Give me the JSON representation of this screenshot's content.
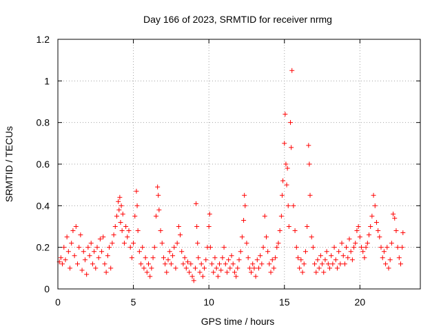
{
  "chart_data": {
    "type": "scatter",
    "title": "Day 166 of 2023, SRMTID for receiver nrmg",
    "xlabel": "GPS time / hours",
    "ylabel": "SRMTID / TECUs",
    "xlim": [
      0,
      24
    ],
    "ylim": [
      0,
      1.2
    ],
    "xticks": [
      0,
      5,
      10,
      15,
      20
    ],
    "xtick_labels": [
      "0",
      "5",
      "10",
      "15",
      "20"
    ],
    "yticks": [
      0,
      0.2,
      0.4,
      0.6,
      0.8,
      1,
      1.2
    ],
    "ytick_labels": [
      "0",
      "0.2",
      "0.4",
      "0.6",
      "0.8",
      "1",
      "1.2"
    ],
    "grid": true,
    "marker": "+",
    "color": "#ff0000",
    "series": [
      {
        "name": "SRMTID",
        "points": [
          [
            0.1,
            0.13
          ],
          [
            0.2,
            0.15
          ],
          [
            0.3,
            0.12
          ],
          [
            0.4,
            0.2
          ],
          [
            0.5,
            0.14
          ],
          [
            0.6,
            0.25
          ],
          [
            0.7,
            0.18
          ],
          [
            0.8,
            0.1
          ],
          [
            0.9,
            0.22
          ],
          [
            1.0,
            0.28
          ],
          [
            1.1,
            0.16
          ],
          [
            1.2,
            0.3
          ],
          [
            1.3,
            0.12
          ],
          [
            1.4,
            0.2
          ],
          [
            1.5,
            0.26
          ],
          [
            1.6,
            0.09
          ],
          [
            1.7,
            0.18
          ],
          [
            1.8,
            0.14
          ],
          [
            1.9,
            0.07
          ],
          [
            2.0,
            0.2
          ],
          [
            2.1,
            0.16
          ],
          [
            2.2,
            0.22
          ],
          [
            2.3,
            0.12
          ],
          [
            2.4,
            0.18
          ],
          [
            2.5,
            0.1
          ],
          [
            2.6,
            0.2
          ],
          [
            2.7,
            0.15
          ],
          [
            2.8,
            0.24
          ],
          [
            2.9,
            0.18
          ],
          [
            3.0,
            0.25
          ],
          [
            3.1,
            0.12
          ],
          [
            3.2,
            0.08
          ],
          [
            3.3,
            0.16
          ],
          [
            3.4,
            0.2
          ],
          [
            3.5,
            0.1
          ],
          [
            3.6,
            0.22
          ],
          [
            3.7,
            0.26
          ],
          [
            3.8,
            0.3
          ],
          [
            3.9,
            0.35
          ],
          [
            4.0,
            0.42
          ],
          [
            4.05,
            0.38
          ],
          [
            4.1,
            0.44
          ],
          [
            4.15,
            0.32
          ],
          [
            4.2,
            0.4
          ],
          [
            4.25,
            0.28
          ],
          [
            4.3,
            0.36
          ],
          [
            4.4,
            0.22
          ],
          [
            4.5,
            0.3
          ],
          [
            4.6,
            0.25
          ],
          [
            4.7,
            0.28
          ],
          [
            4.8,
            0.2
          ],
          [
            4.9,
            0.15
          ],
          [
            5.0,
            0.22
          ],
          [
            5.1,
            0.35
          ],
          [
            5.2,
            0.47
          ],
          [
            5.25,
            0.4
          ],
          [
            5.3,
            0.28
          ],
          [
            5.4,
            0.18
          ],
          [
            5.5,
            0.12
          ],
          [
            5.6,
            0.2
          ],
          [
            5.7,
            0.1
          ],
          [
            5.8,
            0.15
          ],
          [
            5.9,
            0.08
          ],
          [
            6.0,
            0.12
          ],
          [
            6.1,
            0.06
          ],
          [
            6.2,
            0.1
          ],
          [
            6.3,
            0.15
          ],
          [
            6.4,
            0.2
          ],
          [
            6.5,
            0.35
          ],
          [
            6.6,
            0.49
          ],
          [
            6.65,
            0.45
          ],
          [
            6.7,
            0.38
          ],
          [
            6.8,
            0.28
          ],
          [
            6.9,
            0.22
          ],
          [
            7.0,
            0.15
          ],
          [
            7.1,
            0.12
          ],
          [
            7.2,
            0.08
          ],
          [
            7.3,
            0.14
          ],
          [
            7.4,
            0.18
          ],
          [
            7.5,
            0.12
          ],
          [
            7.6,
            0.16
          ],
          [
            7.7,
            0.2
          ],
          [
            7.8,
            0.1
          ],
          [
            7.9,
            0.22
          ],
          [
            8.0,
            0.3
          ],
          [
            8.1,
            0.26
          ],
          [
            8.2,
            0.18
          ],
          [
            8.3,
            0.12
          ],
          [
            8.4,
            0.15
          ],
          [
            8.5,
            0.1
          ],
          [
            8.6,
            0.13
          ],
          [
            8.7,
            0.08
          ],
          [
            8.8,
            0.12
          ],
          [
            8.9,
            0.06
          ],
          [
            9.0,
            0.04
          ],
          [
            9.1,
            0.1
          ],
          [
            9.15,
            0.41
          ],
          [
            9.2,
            0.3
          ],
          [
            9.25,
            0.22
          ],
          [
            9.3,
            0.15
          ],
          [
            9.4,
            0.08
          ],
          [
            9.5,
            0.12
          ],
          [
            9.6,
            0.06
          ],
          [
            9.7,
            0.1
          ],
          [
            9.8,
            0.14
          ],
          [
            9.9,
            0.2
          ],
          [
            10.0,
            0.3
          ],
          [
            10.05,
            0.36
          ],
          [
            10.1,
            0.2
          ],
          [
            10.2,
            0.12
          ],
          [
            10.3,
            0.08
          ],
          [
            10.4,
            0.15
          ],
          [
            10.5,
            0.1
          ],
          [
            10.6,
            0.06
          ],
          [
            10.7,
            0.12
          ],
          [
            10.8,
            0.09
          ],
          [
            10.9,
            0.15
          ],
          [
            11.0,
            0.2
          ],
          [
            11.1,
            0.12
          ],
          [
            11.2,
            0.08
          ],
          [
            11.3,
            0.14
          ],
          [
            11.4,
            0.1
          ],
          [
            11.5,
            0.16
          ],
          [
            11.6,
            0.12
          ],
          [
            11.7,
            0.08
          ],
          [
            11.8,
            0.06
          ],
          [
            11.9,
            0.1
          ],
          [
            12.0,
            0.14
          ],
          [
            12.1,
            0.18
          ],
          [
            12.2,
            0.25
          ],
          [
            12.3,
            0.33
          ],
          [
            12.35,
            0.45
          ],
          [
            12.4,
            0.4
          ],
          [
            12.5,
            0.22
          ],
          [
            12.6,
            0.15
          ],
          [
            12.7,
            0.1
          ],
          [
            12.8,
            0.08
          ],
          [
            12.9,
            0.12
          ],
          [
            13.0,
            0.1
          ],
          [
            13.1,
            0.06
          ],
          [
            13.2,
            0.14
          ],
          [
            13.3,
            0.1
          ],
          [
            13.4,
            0.16
          ],
          [
            13.5,
            0.12
          ],
          [
            13.6,
            0.2
          ],
          [
            13.7,
            0.35
          ],
          [
            13.8,
            0.25
          ],
          [
            13.9,
            0.18
          ],
          [
            14.0,
            0.12
          ],
          [
            14.1,
            0.08
          ],
          [
            14.2,
            0.14
          ],
          [
            14.3,
            0.1
          ],
          [
            14.4,
            0.15
          ],
          [
            14.5,
            0.2
          ],
          [
            14.6,
            0.22
          ],
          [
            14.7,
            0.28
          ],
          [
            14.8,
            0.35
          ],
          [
            14.85,
            0.45
          ],
          [
            14.9,
            0.52
          ],
          [
            15.0,
            0.7
          ],
          [
            15.05,
            0.84
          ],
          [
            15.1,
            0.6
          ],
          [
            15.15,
            0.5
          ],
          [
            15.2,
            0.58
          ],
          [
            15.25,
            0.4
          ],
          [
            15.3,
            0.3
          ],
          [
            15.4,
            0.8
          ],
          [
            15.45,
            0.68
          ],
          [
            15.5,
            1.05
          ],
          [
            15.6,
            0.4
          ],
          [
            15.7,
            0.28
          ],
          [
            15.8,
            0.2
          ],
          [
            15.9,
            0.15
          ],
          [
            16.0,
            0.1
          ],
          [
            16.1,
            0.14
          ],
          [
            16.2,
            0.08
          ],
          [
            16.3,
            0.12
          ],
          [
            16.4,
            0.18
          ],
          [
            16.5,
            0.3
          ],
          [
            16.6,
            0.69
          ],
          [
            16.65,
            0.6
          ],
          [
            16.7,
            0.45
          ],
          [
            16.8,
            0.25
          ],
          [
            16.9,
            0.2
          ],
          [
            17.0,
            0.12
          ],
          [
            17.1,
            0.08
          ],
          [
            17.2,
            0.14
          ],
          [
            17.3,
            0.1
          ],
          [
            17.4,
            0.16
          ],
          [
            17.5,
            0.12
          ],
          [
            17.6,
            0.08
          ],
          [
            17.7,
            0.14
          ],
          [
            17.8,
            0.18
          ],
          [
            17.9,
            0.12
          ],
          [
            18.0,
            0.1
          ],
          [
            18.1,
            0.16
          ],
          [
            18.2,
            0.12
          ],
          [
            18.3,
            0.2
          ],
          [
            18.4,
            0.14
          ],
          [
            18.5,
            0.1
          ],
          [
            18.6,
            0.18
          ],
          [
            18.7,
            0.12
          ],
          [
            18.8,
            0.22
          ],
          [
            18.9,
            0.16
          ],
          [
            19.0,
            0.12
          ],
          [
            19.1,
            0.2
          ],
          [
            19.2,
            0.15
          ],
          [
            19.3,
            0.24
          ],
          [
            19.4,
            0.18
          ],
          [
            19.5,
            0.14
          ],
          [
            19.6,
            0.2
          ],
          [
            19.7,
            0.22
          ],
          [
            19.8,
            0.28
          ],
          [
            19.9,
            0.3
          ],
          [
            20.0,
            0.25
          ],
          [
            20.1,
            0.2
          ],
          [
            20.2,
            0.18
          ],
          [
            20.3,
            0.15
          ],
          [
            20.4,
            0.2
          ],
          [
            20.5,
            0.22
          ],
          [
            20.6,
            0.26
          ],
          [
            20.7,
            0.3
          ],
          [
            20.8,
            0.35
          ],
          [
            20.9,
            0.45
          ],
          [
            21.0,
            0.4
          ],
          [
            21.1,
            0.32
          ],
          [
            21.2,
            0.28
          ],
          [
            21.3,
            0.25
          ],
          [
            21.4,
            0.2
          ],
          [
            21.5,
            0.15
          ],
          [
            21.6,
            0.18
          ],
          [
            21.7,
            0.12
          ],
          [
            21.8,
            0.2
          ],
          [
            21.9,
            0.1
          ],
          [
            22.0,
            0.14
          ],
          [
            22.1,
            0.22
          ],
          [
            22.2,
            0.36
          ],
          [
            22.3,
            0.34
          ],
          [
            22.4,
            0.28
          ],
          [
            22.5,
            0.2
          ],
          [
            22.6,
            0.15
          ],
          [
            22.7,
            0.12
          ],
          [
            22.8,
            0.2
          ],
          [
            22.85,
            0.27
          ]
        ]
      }
    ]
  }
}
